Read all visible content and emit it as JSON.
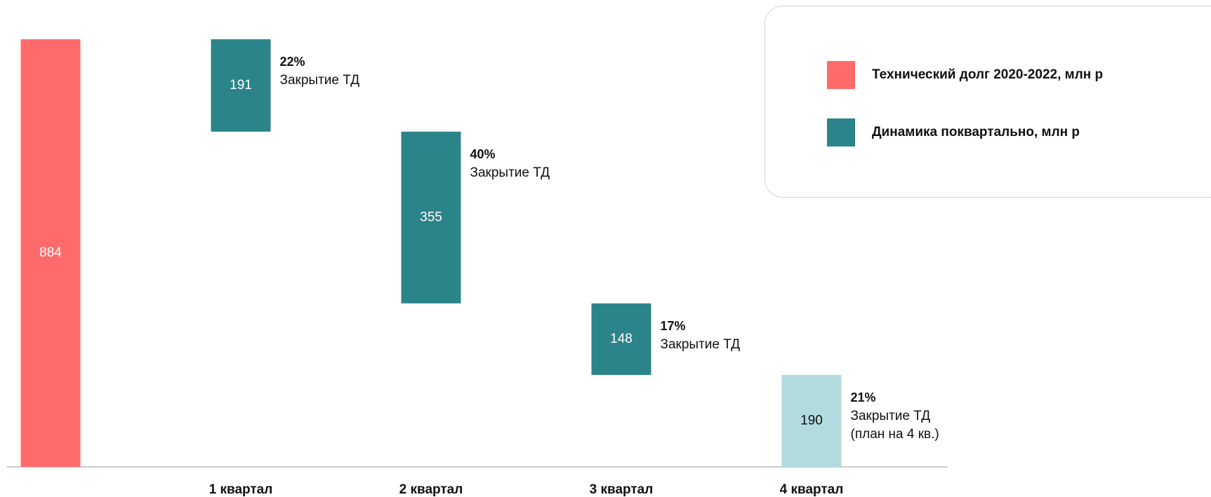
{
  "chart_data": {
    "type": "bar",
    "subtype": "waterfall",
    "categories": [
      "",
      "1 квартал",
      "2 квартал",
      "3 квартал",
      "4 квартал"
    ],
    "values": [
      884,
      191,
      355,
      148,
      190
    ],
    "bar_labels": [
      "884",
      "191",
      "355",
      "148",
      "190"
    ],
    "annotations": [
      null,
      {
        "percent": "22%",
        "lines": [
          "Закрытие ТД"
        ]
      },
      {
        "percent": "40%",
        "lines": [
          "Закрытие ТД"
        ]
      },
      {
        "percent": "17%",
        "lines": [
          "Закрытие ТД"
        ]
      },
      {
        "percent": "21%",
        "lines": [
          "Закрытие ТД",
          "(план на 4 кв.)"
        ]
      }
    ],
    "colors": [
      "#ff6b6b",
      "#2b8489",
      "#2b8489",
      "#2b8489",
      "#b1dbdf"
    ],
    "ylim": [
      0,
      884
    ],
    "grid": false,
    "legend_position": "top-right",
    "legend": [
      {
        "label": "Технический долг 2020-2022, млн р",
        "color": "#ff6b6b"
      },
      {
        "label": "Динамика поквартально, млн р",
        "color": "#2b8489"
      }
    ]
  }
}
